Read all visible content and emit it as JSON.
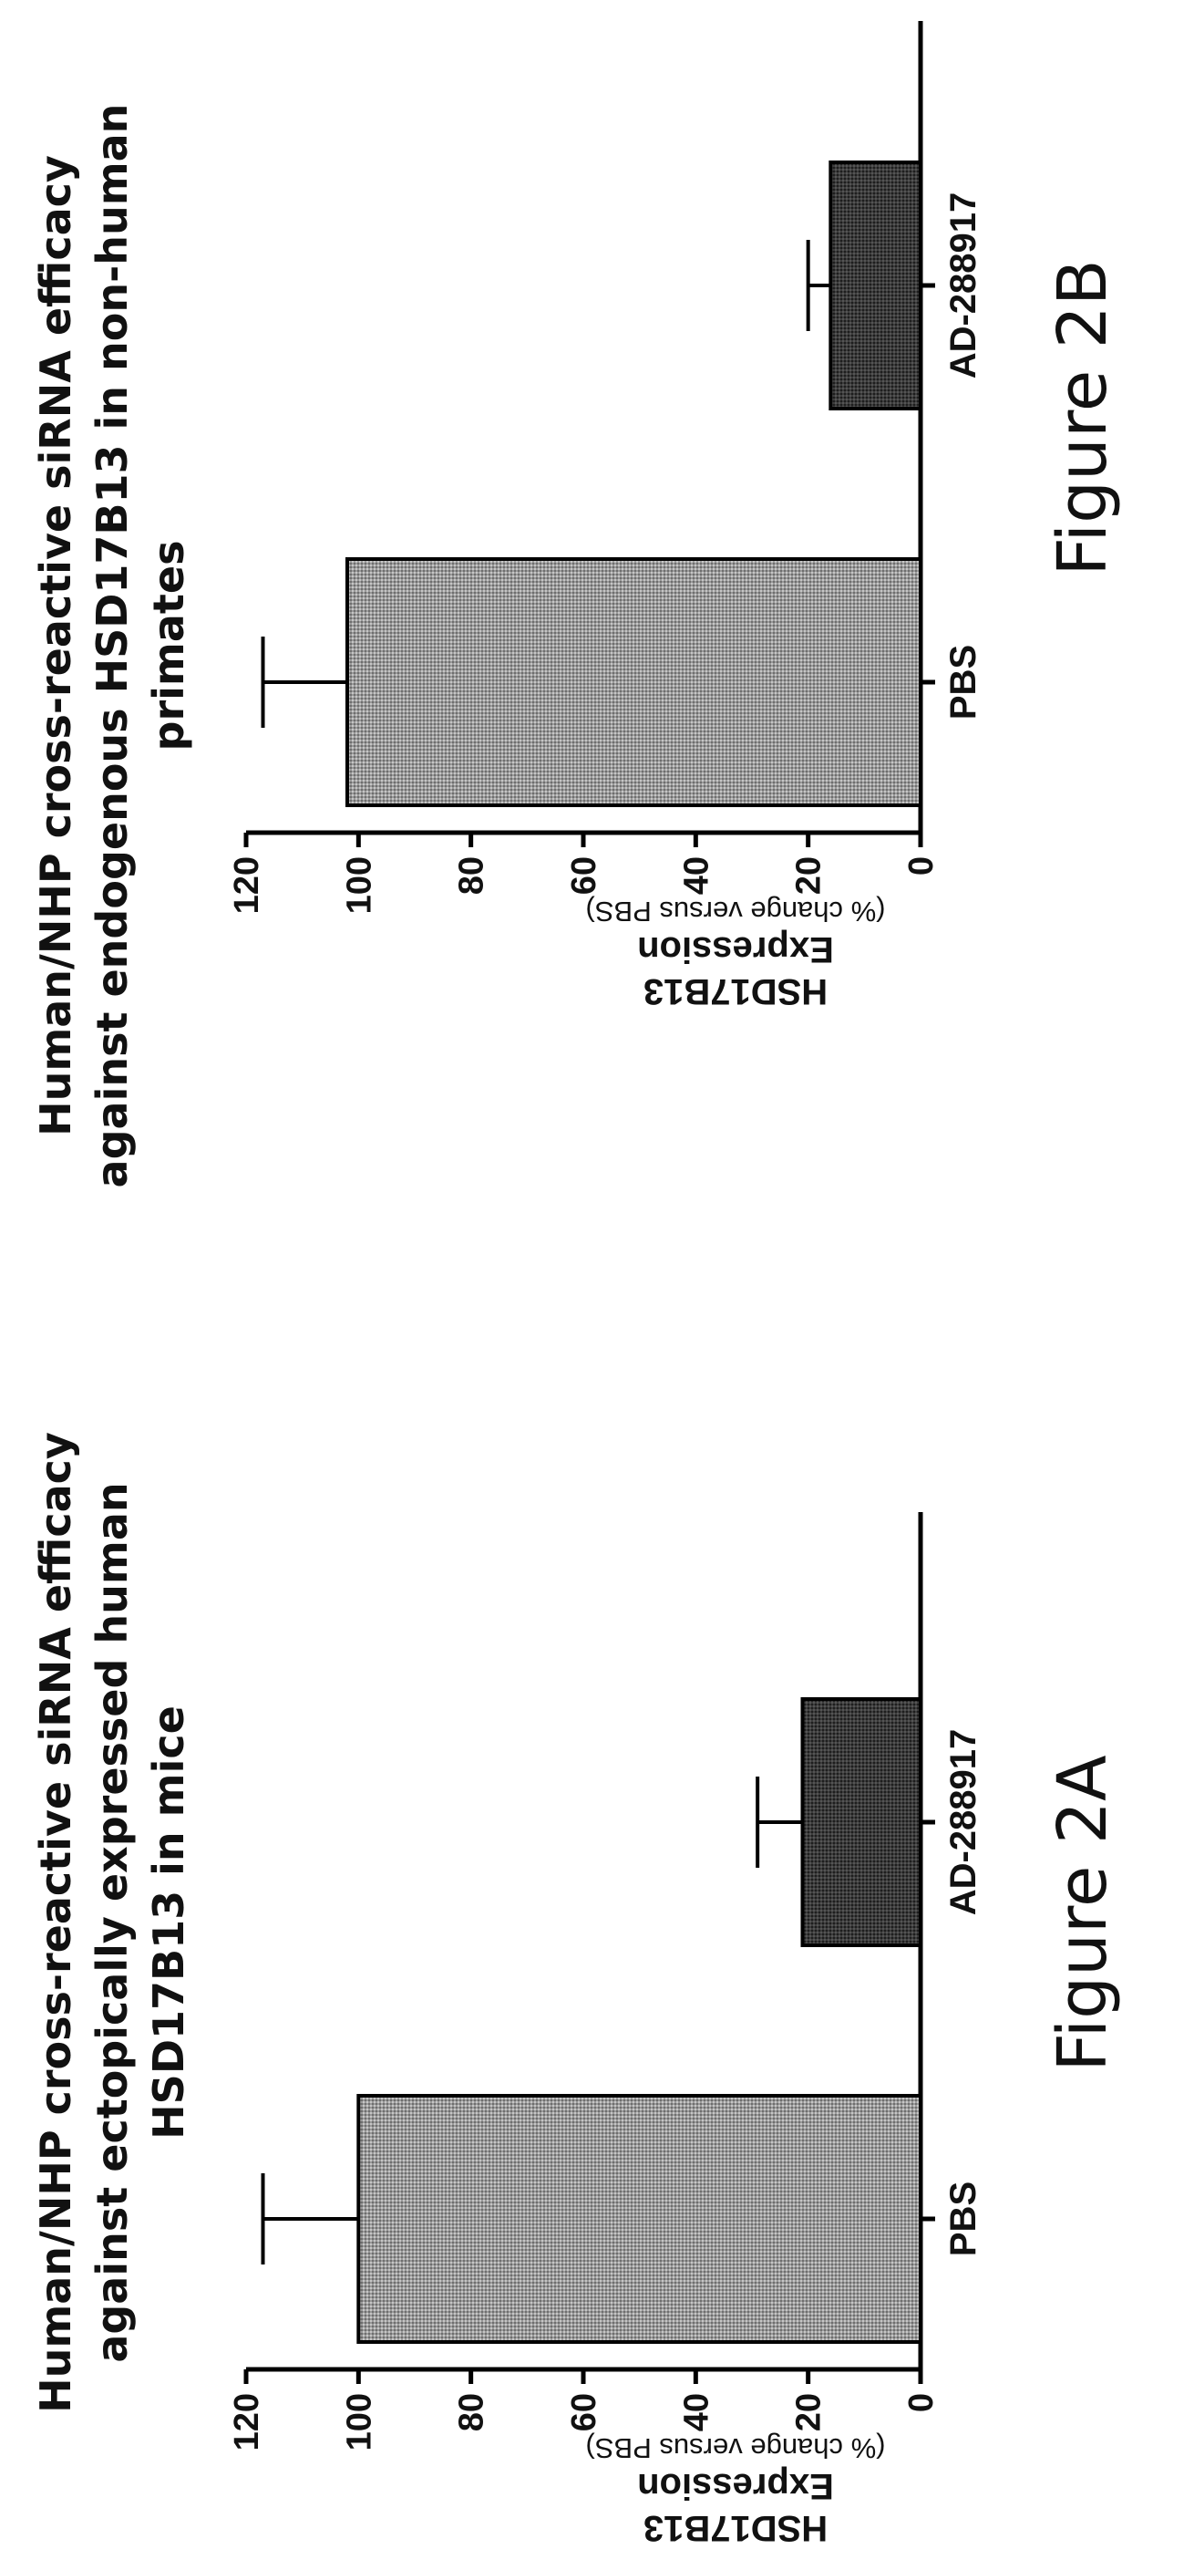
{
  "chart_data": [
    {
      "type": "bar",
      "title": "Human/NHP cross-reactive siRNA efficacy against ectopically expressed human HSD17B13 in mice",
      "title_lines": [
        "Human/NHP cross-reactive siRNA efficacy",
        "against ectopically expressed human",
        "HSD17B13 in mice"
      ],
      "ylabel": "HSD17B13 Expression",
      "ylabel_sub": "(% change versus PBS)",
      "xlabel": "",
      "ylim": [
        0,
        120
      ],
      "yticks": [
        0,
        20,
        40,
        60,
        80,
        100,
        120
      ],
      "categories": [
        "PBS",
        "AD-288917"
      ],
      "values": [
        100,
        21
      ],
      "error": [
        17,
        8
      ],
      "colors": [
        "#9a9a9a",
        "#3c3c3c"
      ],
      "figure_label": "Figure 2A"
    },
    {
      "type": "bar",
      "title": "Human/NHP cross-reactive siRNA efficacy against endogenous HSD17B13 in non-human primates",
      "title_lines": [
        "Human/NHP cross-reactive siRNA efficacy",
        "against endogenous HSD17B13 in non-human",
        "primates"
      ],
      "ylabel": "HSD17B13 Expression",
      "ylabel_sub": "(% change versus PBS)",
      "xlabel": "",
      "ylim": [
        0,
        120
      ],
      "yticks": [
        0,
        20,
        40,
        60,
        80,
        100,
        120
      ],
      "categories": [
        "PBS",
        "AD-288917"
      ],
      "values": [
        102,
        16
      ],
      "error": [
        15,
        4
      ],
      "colors": [
        "#9a9a9a",
        "#3c3c3c"
      ],
      "figure_label": "Figure 2B"
    }
  ]
}
